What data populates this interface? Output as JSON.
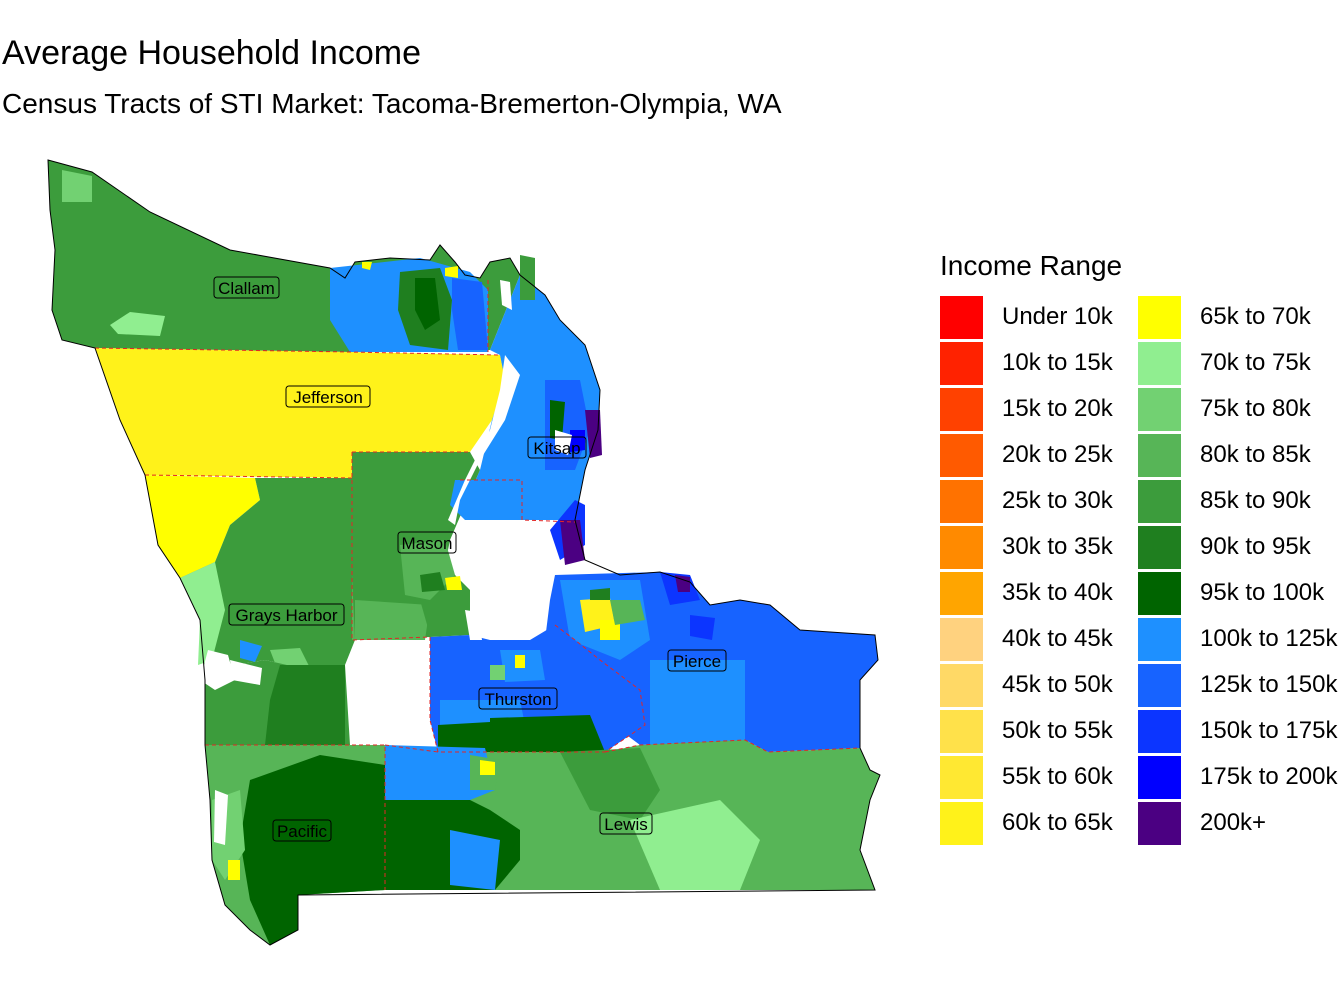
{
  "title": "Average Household Income",
  "subtitle": "Census Tracts of STI Market: Tacoma-Bremerton-Olympia, WA",
  "legend": {
    "title": "Income Range",
    "items": [
      {
        "label": "Under 10k",
        "color": "#ff0000"
      },
      {
        "label": "10k to 15k",
        "color": "#ff2200"
      },
      {
        "label": "15k to 20k",
        "color": "#ff4100"
      },
      {
        "label": "20k to 25k",
        "color": "#ff5a00"
      },
      {
        "label": "25k to 30k",
        "color": "#ff7200"
      },
      {
        "label": "30k to 35k",
        "color": "#ff8a00"
      },
      {
        "label": "35k to 40k",
        "color": "#ffa500"
      },
      {
        "label": "40k to 45k",
        "color": "#ffd27f"
      },
      {
        "label": "45k to 50k",
        "color": "#ffd966"
      },
      {
        "label": "50k to 55k",
        "color": "#ffe14a"
      },
      {
        "label": "55k to 60k",
        "color": "#ffe832"
      },
      {
        "label": "60k to 65k",
        "color": "#fff21a"
      },
      {
        "label": "65k to 70k",
        "color": "#ffff00"
      },
      {
        "label": "70k to 75k",
        "color": "#90ee90"
      },
      {
        "label": "75k to 80k",
        "color": "#72d172"
      },
      {
        "label": "80k to 85k",
        "color": "#57b557"
      },
      {
        "label": "85k to 90k",
        "color": "#3c9c3c"
      },
      {
        "label": "90k to 95k",
        "color": "#1f7f1f"
      },
      {
        "label": "95k to 100k",
        "color": "#006400"
      },
      {
        "label": "100k to 125k",
        "color": "#1e90ff"
      },
      {
        "label": "125k to 150k",
        "color": "#1763ff"
      },
      {
        "label": "150k to 175k",
        "color": "#0c35ff"
      },
      {
        "label": "175k to 200k",
        "color": "#0000ff"
      },
      {
        "label": "200k+",
        "color": "#4b0082"
      }
    ]
  },
  "counties": [
    {
      "name": "Clallam"
    },
    {
      "name": "Jefferson"
    },
    {
      "name": "Kitsap"
    },
    {
      "name": "Mason"
    },
    {
      "name": "Grays Harbor"
    },
    {
      "name": "Pierce"
    },
    {
      "name": "Thurston"
    },
    {
      "name": "Pacific"
    },
    {
      "name": "Lewis"
    }
  ],
  "colors": {
    "county_border": "#e32626"
  }
}
